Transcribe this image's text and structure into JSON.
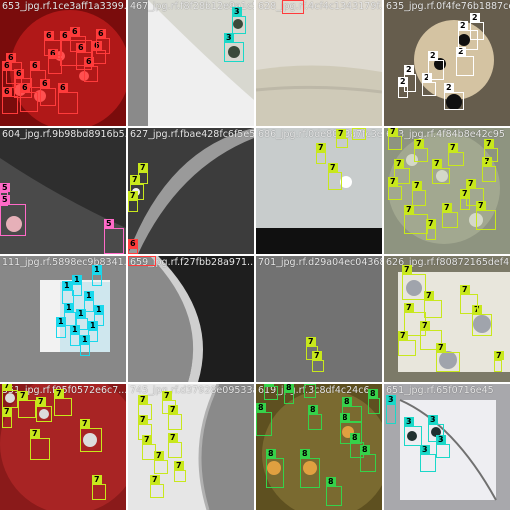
{
  "tiles": [
    {
      "name": "653_jpg.rf.1ce3aff1a3399...",
      "bg": "#8a1010"
    },
    {
      "name": "467_jpg.rf.f8f28b12e9a1c5432",
      "bg": "#d6d6d6"
    },
    {
      "name": "628_jpg.rf.4cf4c1343179f...",
      "bg": "#d9d4c0"
    },
    {
      "name": "635_jpg.rf.0f4fe76b1887cea3",
      "bg": "#2a241c"
    },
    {
      "name": "604_jpg.rf.9b98bd8916b5...",
      "bg": "#3a3a3a"
    },
    {
      "name": "627_jpg.rf.fbae428fc6f5e57",
      "bg": "#4a4a4a"
    },
    {
      "name": "686_jpg.rf.0de8093a7fc3e",
      "bg": "#9ca0a0"
    },
    {
      "name": "683_jpg.rf.4f84b8e42c95",
      "bg": "#9aa08a"
    },
    {
      "name": "111_jpg.rf.5898ec9b8341...",
      "bg": "#8a8a8a"
    },
    {
      "name": "659_jpg.rf.f27fbb28a971...",
      "bg": "#2a2a2a"
    },
    {
      "name": "701_jpg.rf.d29a04ec04368",
      "bg": "#6e6e6e"
    },
    {
      "name": "626_jpg.rf.f80872165def4",
      "bg": "#8c8a78"
    },
    {
      "name": "551_jpg.rf.f05f0572e6c7...",
      "bg": "#8a1c1c"
    },
    {
      "name": "745_jpg.rf.d37928e09533a",
      "bg": "#d0d0d0"
    },
    {
      "name": "619_jpg.rf.3c8df4c24c6...",
      "bg": "#6a5a22"
    },
    {
      "name": "651_jpg.rf.65f0716e45",
      "bg": "#b0b0b4"
    }
  ],
  "colors": {
    "c6": "#ff3b3b",
    "c3": "#1ad8c8",
    "c2": "#ffffff",
    "c7": "#c8e81c",
    "c5": "#ff6ac8",
    "c1": "#1ad8ec",
    "c8": "#36d24a"
  },
  "boxes": [
    {
      "t": 0,
      "c": "6",
      "items": [
        [
          6,
          62,
          16,
          22
        ],
        [
          2,
          70,
          14,
          18
        ],
        [
          14,
          78,
          18,
          20
        ],
        [
          30,
          70,
          16,
          18
        ],
        [
          48,
          58,
          14,
          16
        ],
        [
          60,
          40,
          32,
          26
        ],
        [
          76,
          52,
          16,
          18
        ],
        [
          84,
          66,
          14,
          16
        ],
        [
          92,
          50,
          14,
          14
        ],
        [
          20,
          92,
          18,
          20
        ],
        [
          40,
          88,
          16,
          18
        ],
        [
          2,
          96,
          16,
          18
        ],
        [
          58,
          92,
          20,
          22
        ],
        [
          44,
          40,
          18,
          16
        ],
        [
          96,
          38,
          14,
          16
        ],
        [
          70,
          36,
          16,
          16
        ]
      ]
    },
    {
      "t": 1,
      "c": "3",
      "items": [
        [
          96,
          42,
          20,
          20
        ],
        [
          104,
          16,
          14,
          18
        ]
      ]
    },
    {
      "t": 2,
      "c": "6",
      "items": [
        [
          26,
          0,
          22,
          14
        ]
      ]
    },
    {
      "t": 3,
      "c": "2",
      "items": [
        [
          20,
          74,
          12,
          18
        ],
        [
          38,
          82,
          14,
          14
        ],
        [
          44,
          60,
          16,
          20
        ],
        [
          72,
          56,
          18,
          20
        ],
        [
          86,
          22,
          14,
          18
        ],
        [
          60,
          92,
          20,
          18
        ],
        [
          74,
          30,
          20,
          20
        ],
        [
          14,
          86,
          10,
          12
        ]
      ]
    },
    {
      "t": 4,
      "c": "5",
      "items": [
        [
          0,
          76,
          26,
          32
        ],
        [
          0,
          64,
          8,
          14
        ],
        [
          104,
          100,
          20,
          26
        ]
      ]
    },
    {
      "t": 5,
      "c": "7",
      "items": [
        [
          2,
          56,
          14,
          16
        ],
        [
          10,
          44,
          10,
          12
        ],
        [
          0,
          72,
          10,
          12
        ]
      ]
    },
    {
      "t": 5,
      "c": "6",
      "items": [
        [
          0,
          120,
          10,
          6
        ]
      ]
    },
    {
      "t": 6,
      "c": "7",
      "items": [
        [
          60,
          24,
          10,
          12
        ],
        [
          72,
          44,
          14,
          18
        ],
        [
          80,
          10,
          12,
          10
        ],
        [
          96,
          0,
          14,
          12
        ]
      ]
    },
    {
      "t": 7,
      "c": "7",
      "items": [
        [
          4,
          8,
          14,
          14
        ],
        [
          10,
          40,
          16,
          16
        ],
        [
          4,
          58,
          14,
          14
        ],
        [
          30,
          20,
          14,
          14
        ],
        [
          48,
          40,
          18,
          16
        ],
        [
          28,
          62,
          14,
          16
        ],
        [
          64,
          24,
          16,
          14
        ],
        [
          82,
          60,
          18,
          18
        ],
        [
          98,
          38,
          14,
          16
        ],
        [
          92,
          82,
          20,
          20
        ],
        [
          100,
          20,
          14,
          14
        ],
        [
          20,
          86,
          24,
          20
        ],
        [
          58,
          84,
          16,
          16
        ],
        [
          76,
          70,
          10,
          12
        ],
        [
          42,
          100,
          10,
          12
        ]
      ]
    },
    {
      "t": 8,
      "c": "1",
      "items": [
        [
          62,
          34,
          12,
          14
        ],
        [
          72,
          28,
          10,
          12
        ],
        [
          84,
          44,
          10,
          12
        ],
        [
          92,
          18,
          10,
          12
        ],
        [
          64,
          56,
          12,
          14
        ],
        [
          76,
          62,
          12,
          12
        ],
        [
          88,
          74,
          10,
          12
        ],
        [
          70,
          78,
          10,
          12
        ],
        [
          56,
          70,
          10,
          12
        ],
        [
          94,
          58,
          10,
          12
        ],
        [
          80,
          88,
          10,
          12
        ]
      ]
    },
    {
      "t": 9,
      "c": "6",
      "items": [
        [
          0,
          0,
          28,
          10
        ]
      ]
    },
    {
      "t": 10,
      "c": "7",
      "items": [
        [
          50,
          90,
          12,
          14
        ],
        [
          56,
          104,
          12,
          12
        ]
      ]
    },
    {
      "t": 11,
      "c": "7",
      "items": [
        [
          18,
          18,
          24,
          26
        ],
        [
          20,
          56,
          22,
          24
        ],
        [
          36,
          74,
          22,
          20
        ],
        [
          52,
          96,
          24,
          20
        ],
        [
          88,
          58,
          20,
          22
        ],
        [
          76,
          38,
          18,
          20
        ],
        [
          40,
          44,
          18,
          18
        ],
        [
          14,
          84,
          18,
          16
        ],
        [
          110,
          104,
          8,
          12
        ]
      ]
    },
    {
      "t": 12,
      "c": "7",
      "items": [
        [
          2,
          6,
          16,
          18
        ],
        [
          18,
          16,
          18,
          18
        ],
        [
          36,
          22,
          16,
          16
        ],
        [
          54,
          14,
          18,
          18
        ],
        [
          80,
          44,
          22,
          24
        ],
        [
          30,
          54,
          20,
          22
        ],
        [
          2,
          32,
          10,
          12
        ],
        [
          92,
          100,
          14,
          16
        ]
      ]
    },
    {
      "t": 13,
      "c": "7",
      "items": [
        [
          10,
          20,
          14,
          16
        ],
        [
          10,
          40,
          14,
          16
        ],
        [
          14,
          60,
          14,
          16
        ],
        [
          26,
          76,
          14,
          14
        ],
        [
          40,
          58,
          14,
          16
        ],
        [
          40,
          30,
          14,
          16
        ],
        [
          22,
          100,
          14,
          14
        ],
        [
          46,
          86,
          12,
          12
        ],
        [
          34,
          16,
          14,
          14
        ]
      ]
    },
    {
      "t": 14,
      "c": "8",
      "items": [
        [
          0,
          28,
          16,
          24
        ],
        [
          10,
          74,
          18,
          30
        ],
        [
          44,
          74,
          20,
          30
        ],
        [
          84,
          38,
          22,
          22
        ],
        [
          86,
          22,
          20,
          16
        ],
        [
          112,
          14,
          12,
          16
        ],
        [
          52,
          30,
          14,
          16
        ],
        [
          8,
          2,
          14,
          14
        ],
        [
          48,
          0,
          12,
          14
        ],
        [
          70,
          102,
          16,
          20
        ],
        [
          94,
          58,
          14,
          16
        ],
        [
          28,
          8,
          10,
          12
        ],
        [
          104,
          70,
          16,
          18
        ]
      ]
    },
    {
      "t": 15,
      "c": "3",
      "items": [
        [
          20,
          42,
          18,
          20
        ],
        [
          44,
          40,
          16,
          18
        ],
        [
          36,
          70,
          16,
          18
        ],
        [
          2,
          20,
          10,
          20
        ],
        [
          52,
          60,
          14,
          14
        ]
      ]
    }
  ]
}
